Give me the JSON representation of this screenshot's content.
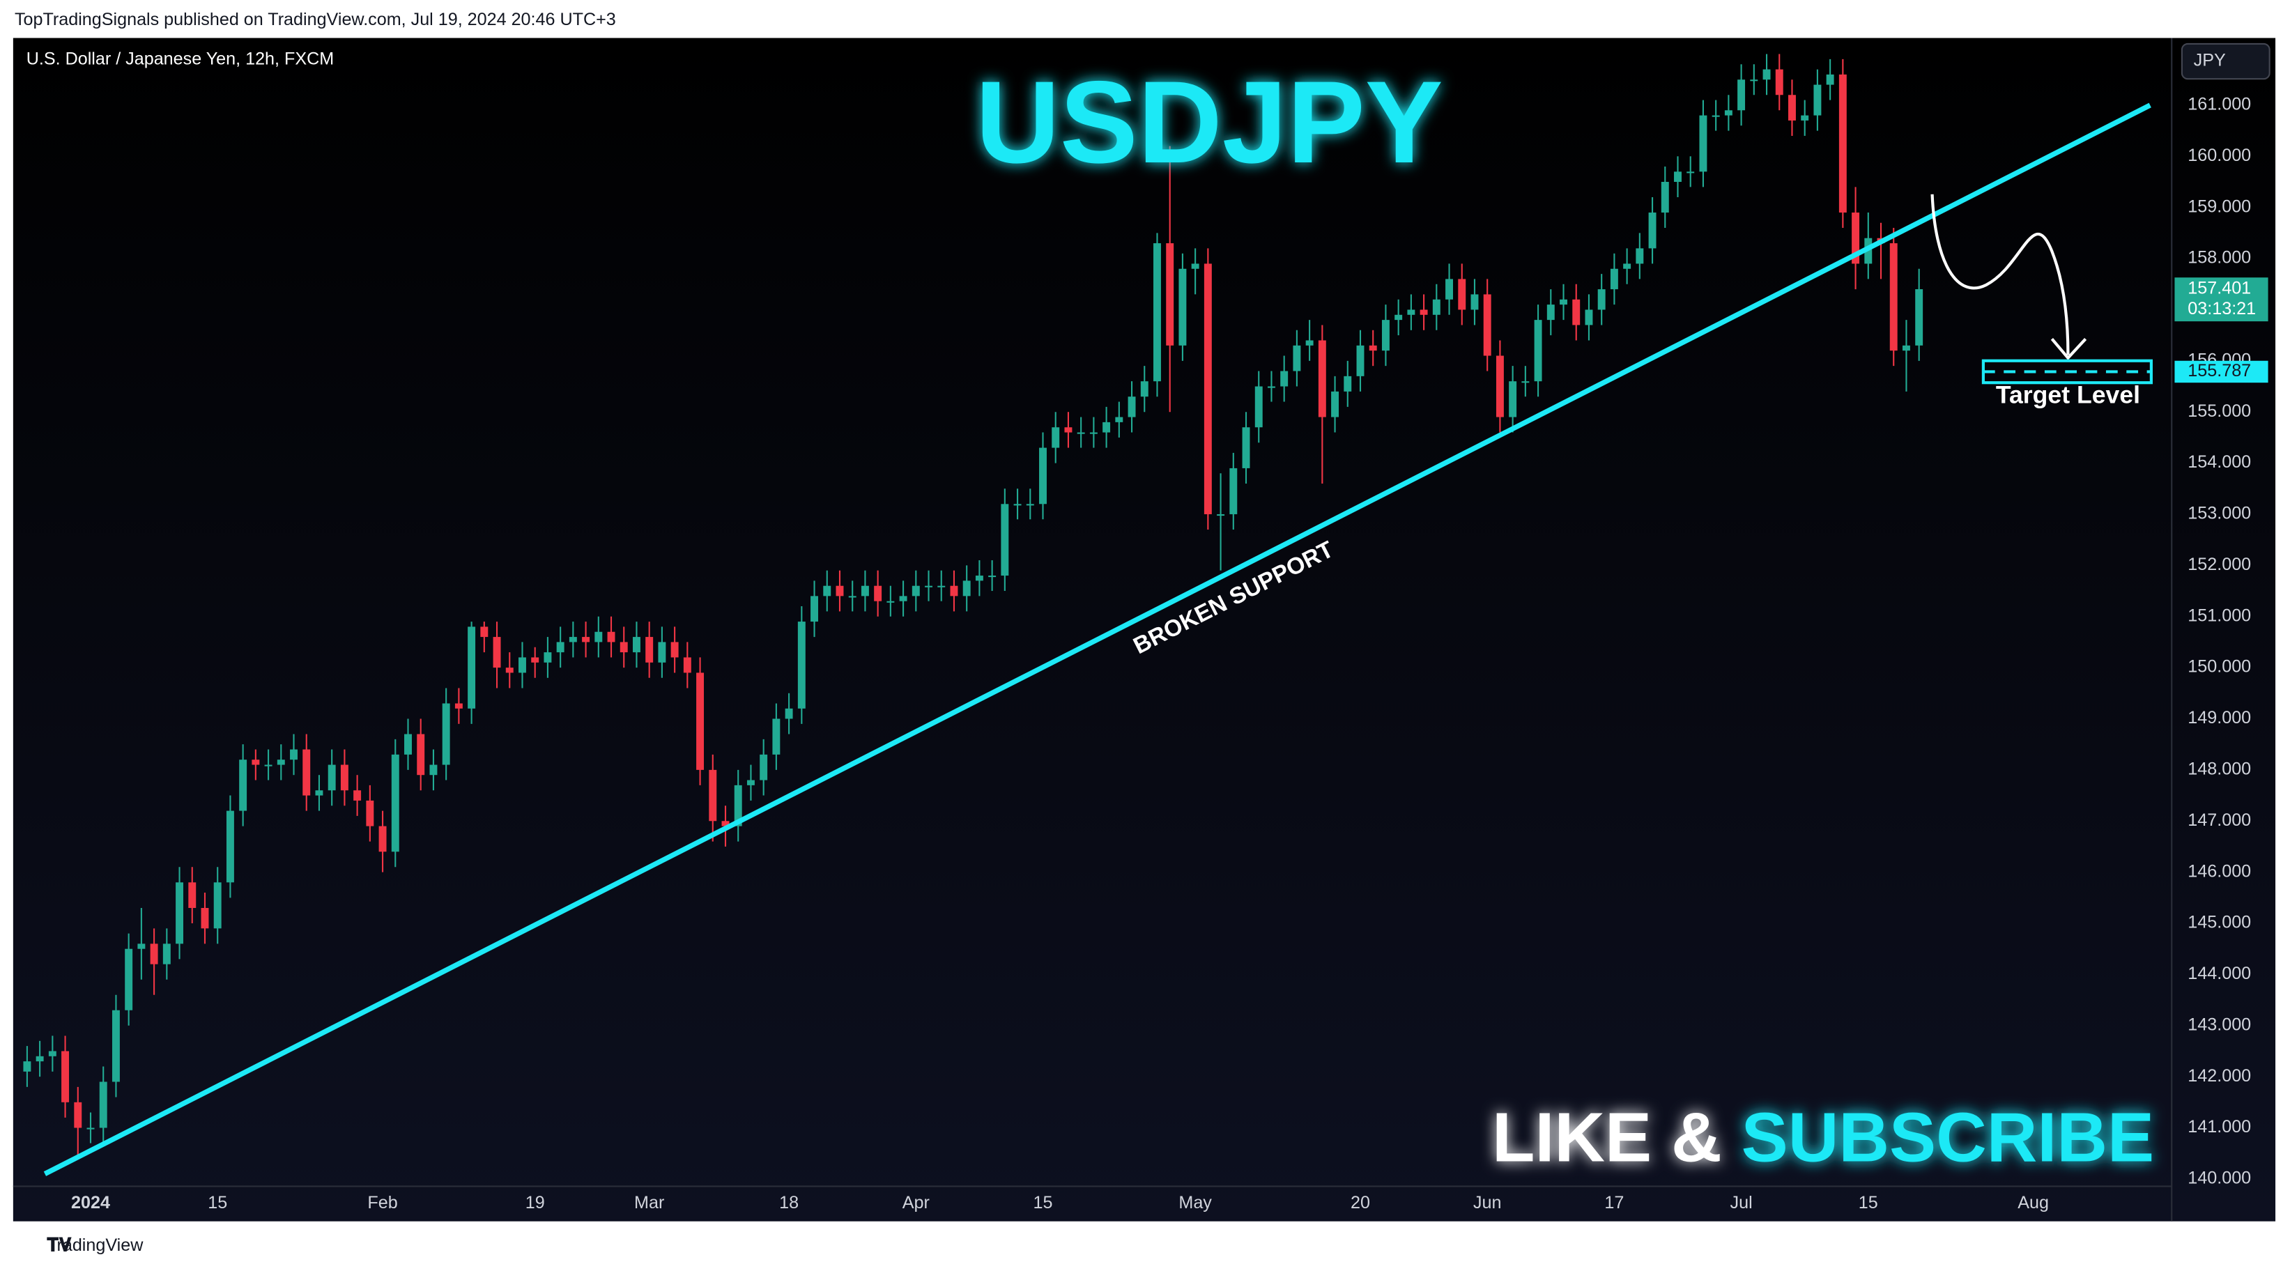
{
  "header": "TopTradingSignals published on TradingView.com, Jul 19, 2024 20:46 UTC+3",
  "footer": "TradingView",
  "chart_data": {
    "type": "candlestick",
    "title": "USDJPY",
    "subtitle": "U.S. Dollar / Japanese Yen, 12h, FXCM",
    "currency": "JPY",
    "annotation": "BROKEN SUPPORT",
    "target_label": "Target Level",
    "target": {
      "value": 155.787,
      "label": "155.787"
    },
    "last_price": {
      "value": 157.401,
      "label": "157.401"
    },
    "countdown": "03:13:21",
    "cta": [
      "LIKE &",
      "SUBSCRIBE"
    ],
    "up_color": "#22ab94",
    "down_color": "#f23645",
    "accent_color": "#1de9f6",
    "trendline": {
      "x": [
        1.4,
        167.2
      ],
      "y": [
        140.1,
        161.0
      ]
    },
    "open": [
      142.1,
      142.3,
      142.4,
      142.5,
      141.5,
      141.0,
      141.0,
      141.9,
      143.3,
      144.5,
      144.6,
      144.2,
      144.6,
      145.8,
      145.3,
      144.9,
      145.8,
      147.2,
      148.2,
      148.1,
      148.1,
      148.2,
      148.4,
      147.5,
      147.6,
      148.1,
      147.6,
      147.4,
      146.9,
      146.4,
      148.3,
      148.7,
      147.9,
      148.1,
      149.3,
      149.2,
      150.8,
      150.6,
      150.0,
      149.9,
      150.2,
      150.1,
      150.3,
      150.5,
      150.6,
      150.5,
      150.7,
      150.5,
      150.3,
      150.6,
      150.1,
      150.5,
      150.2,
      149.9,
      148.0,
      147.0,
      146.9,
      147.7,
      147.8,
      148.3,
      149.0,
      149.2,
      150.9,
      151.4,
      151.6,
      151.4,
      151.4,
      151.6,
      151.3,
      151.3,
      151.4,
      151.6,
      151.6,
      151.6,
      151.4,
      151.7,
      151.8,
      151.8,
      153.2,
      153.2,
      153.2,
      154.3,
      154.7,
      154.6,
      154.6,
      154.6,
      154.8,
      154.9,
      155.3,
      155.6,
      158.3,
      156.3,
      157.8,
      157.9,
      153.0,
      153.0,
      153.9,
      154.7,
      155.5,
      155.5,
      155.8,
      156.3,
      156.4,
      154.9,
      155.4,
      155.7,
      156.3,
      156.2,
      156.8,
      156.9,
      157.0,
      156.9,
      157.2,
      157.6,
      157.0,
      157.3,
      156.1,
      154.9,
      155.6,
      155.6,
      156.8,
      157.1,
      157.2,
      156.7,
      157.0,
      157.4,
      157.8,
      157.9,
      158.2,
      158.9,
      159.5,
      159.7,
      159.7,
      160.8,
      160.8,
      160.9,
      161.5,
      161.5,
      161.7,
      161.2,
      160.7,
      160.8,
      161.4,
      161.6,
      158.9,
      157.9,
      158.4,
      158.3,
      156.2,
      156.3
    ],
    "high": [
      142.6,
      142.7,
      142.8,
      142.8,
      141.8,
      141.3,
      142.2,
      143.6,
      144.8,
      145.3,
      144.9,
      144.9,
      146.1,
      146.1,
      145.6,
      146.1,
      147.5,
      148.5,
      148.4,
      148.4,
      148.5,
      148.7,
      148.7,
      147.9,
      148.4,
      148.4,
      147.9,
      147.7,
      147.2,
      148.6,
      149.0,
      149.0,
      148.4,
      149.6,
      149.6,
      150.9,
      150.9,
      150.9,
      150.3,
      150.5,
      150.4,
      150.6,
      150.8,
      150.9,
      150.9,
      151.0,
      151.0,
      150.8,
      150.9,
      150.9,
      150.8,
      150.8,
      150.5,
      150.2,
      148.3,
      147.3,
      148.0,
      148.1,
      148.6,
      149.3,
      149.5,
      151.2,
      151.7,
      151.9,
      151.9,
      151.7,
      151.9,
      151.9,
      151.6,
      151.7,
      151.9,
      151.9,
      151.9,
      151.9,
      152.0,
      152.1,
      152.1,
      153.5,
      153.5,
      153.5,
      154.6,
      155.0,
      155.0,
      154.9,
      154.9,
      155.1,
      155.2,
      155.6,
      155.9,
      158.5,
      160.2,
      158.1,
      158.2,
      158.2,
      153.8,
      154.2,
      155.0,
      155.8,
      155.8,
      156.1,
      156.6,
      156.8,
      156.7,
      155.7,
      156.0,
      156.6,
      156.6,
      157.1,
      157.2,
      157.3,
      157.3,
      157.5,
      157.9,
      157.9,
      157.6,
      157.6,
      156.4,
      155.9,
      155.9,
      157.1,
      157.4,
      157.5,
      157.5,
      157.3,
      157.7,
      158.1,
      158.2,
      158.5,
      159.2,
      159.8,
      160.0,
      160.0,
      161.1,
      161.1,
      161.2,
      161.8,
      161.8,
      162.0,
      162.0,
      161.5,
      161.1,
      161.7,
      161.9,
      161.9,
      159.4,
      158.9,
      158.7,
      158.6,
      156.8,
      157.8
    ],
    "low": [
      141.8,
      142.0,
      142.1,
      141.2,
      140.4,
      140.7,
      140.7,
      141.6,
      143.0,
      143.9,
      143.6,
      143.9,
      144.3,
      145.0,
      144.6,
      144.6,
      145.5,
      146.9,
      147.8,
      147.8,
      147.8,
      147.9,
      147.2,
      147.2,
      147.3,
      147.3,
      147.1,
      146.6,
      146.0,
      146.1,
      148.0,
      147.6,
      147.6,
      147.8,
      148.9,
      148.9,
      150.3,
      149.6,
      149.6,
      149.6,
      149.8,
      149.8,
      150.0,
      150.2,
      150.2,
      150.2,
      150.2,
      150.0,
      150.0,
      149.8,
      149.8,
      149.9,
      149.6,
      147.7,
      146.6,
      146.5,
      146.6,
      147.4,
      147.5,
      148.0,
      148.7,
      148.9,
      150.6,
      151.1,
      151.1,
      151.1,
      151.1,
      151.0,
      151.0,
      151.0,
      151.1,
      151.3,
      151.3,
      151.1,
      151.1,
      151.4,
      151.5,
      151.5,
      152.9,
      152.9,
      152.9,
      154.0,
      154.3,
      154.3,
      154.3,
      154.3,
      154.5,
      154.6,
      155.0,
      155.3,
      155.0,
      156.0,
      157.3,
      152.7,
      151.9,
      152.7,
      153.6,
      154.4,
      155.2,
      155.2,
      155.5,
      156.0,
      153.6,
      154.6,
      155.1,
      155.4,
      155.9,
      155.9,
      156.5,
      156.6,
      156.6,
      156.6,
      156.9,
      156.7,
      156.7,
      155.8,
      154.6,
      154.6,
      155.3,
      155.3,
      156.5,
      156.8,
      156.4,
      156.4,
      156.7,
      157.1,
      157.5,
      157.6,
      157.9,
      158.6,
      159.2,
      159.4,
      159.4,
      160.5,
      160.5,
      160.6,
      161.2,
      161.2,
      160.9,
      160.4,
      160.4,
      160.5,
      161.1,
      158.6,
      157.4,
      157.6,
      157.6,
      155.9,
      155.4,
      156.0
    ],
    "close": [
      142.3,
      142.4,
      142.5,
      141.5,
      141.0,
      141.0,
      141.9,
      143.3,
      144.5,
      144.6,
      144.2,
      144.6,
      145.8,
      145.3,
      144.9,
      145.8,
      147.2,
      148.2,
      148.1,
      148.1,
      148.2,
      148.4,
      147.5,
      147.6,
      148.1,
      147.6,
      147.4,
      146.9,
      146.4,
      148.3,
      148.7,
      147.9,
      148.1,
      149.3,
      149.2,
      150.8,
      150.6,
      150.0,
      149.9,
      150.2,
      150.1,
      150.3,
      150.5,
      150.6,
      150.5,
      150.7,
      150.5,
      150.3,
      150.6,
      150.1,
      150.5,
      150.2,
      149.9,
      148.0,
      147.0,
      146.9,
      147.7,
      147.8,
      148.3,
      149.0,
      149.2,
      150.9,
      151.4,
      151.6,
      151.4,
      151.4,
      151.6,
      151.3,
      151.3,
      151.4,
      151.6,
      151.6,
      151.6,
      151.4,
      151.7,
      151.8,
      151.8,
      153.2,
      153.2,
      153.2,
      154.3,
      154.7,
      154.6,
      154.6,
      154.6,
      154.8,
      154.9,
      155.3,
      155.6,
      158.3,
      156.3,
      157.8,
      157.9,
      153.0,
      153.0,
      153.9,
      154.7,
      155.5,
      155.5,
      155.8,
      156.3,
      156.4,
      154.9,
      155.4,
      155.7,
      156.3,
      156.2,
      156.8,
      156.9,
      157.0,
      156.9,
      157.2,
      157.6,
      157.0,
      157.3,
      156.1,
      154.9,
      155.6,
      155.6,
      156.8,
      157.1,
      157.2,
      156.7,
      157.0,
      157.4,
      157.8,
      157.9,
      158.2,
      158.9,
      159.5,
      159.7,
      159.7,
      160.8,
      160.8,
      160.9,
      161.5,
      161.5,
      161.7,
      161.2,
      160.7,
      160.8,
      161.4,
      161.6,
      158.9,
      157.9,
      158.4,
      158.3,
      156.2,
      156.3,
      157.401
    ],
    "xlim": [
      -1.1,
      168.9
    ],
    "xticks": [
      {
        "value": 5,
        "label": "2024"
      },
      {
        "value": 15,
        "label": "15"
      },
      {
        "value": 28,
        "label": "Feb"
      },
      {
        "value": 40,
        "label": "19"
      },
      {
        "value": 49,
        "label": "Mar"
      },
      {
        "value": 60,
        "label": "18"
      },
      {
        "value": 70,
        "label": "Apr"
      },
      {
        "value": 80,
        "label": "15"
      },
      {
        "value": 92,
        "label": "May"
      },
      {
        "value": 105,
        "label": "20"
      },
      {
        "value": 115,
        "label": "Jun"
      },
      {
        "value": 125,
        "label": "17"
      },
      {
        "value": 135,
        "label": "Jul"
      },
      {
        "value": 145,
        "label": "15"
      },
      {
        "value": 158,
        "label": "Aug"
      }
    ],
    "ylim": [
      139.857,
      162.314
    ],
    "yticks": [
      {
        "value": 140,
        "label": "140.000"
      },
      {
        "value": 141,
        "label": "141.000"
      },
      {
        "value": 142,
        "label": "142.000"
      },
      {
        "value": 143,
        "label": "143.000"
      },
      {
        "value": 144,
        "label": "144.000"
      },
      {
        "value": 145,
        "label": "145.000"
      },
      {
        "value": 146,
        "label": "146.000"
      },
      {
        "value": 147,
        "label": "147.000"
      },
      {
        "value": 148,
        "label": "148.000"
      },
      {
        "value": 149,
        "label": "149.000"
      },
      {
        "value": 150,
        "label": "150.000"
      },
      {
        "value": 151,
        "label": "151.000"
      },
      {
        "value": 152,
        "label": "152.000"
      },
      {
        "value": 153,
        "label": "153.000"
      },
      {
        "value": 154,
        "label": "154.000"
      },
      {
        "value": 155,
        "label": "155.000"
      },
      {
        "value": 156,
        "label": "156.000"
      },
      {
        "value": 157,
        "label": "157.000"
      },
      {
        "value": 158,
        "label": "158.000"
      },
      {
        "value": 159,
        "label": "159.000"
      },
      {
        "value": 160,
        "label": "160.000"
      },
      {
        "value": 161,
        "label": "161.000"
      }
    ]
  }
}
